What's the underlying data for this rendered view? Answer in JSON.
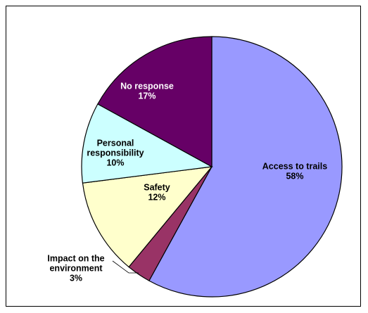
{
  "chart_data": {
    "type": "pie",
    "title": "",
    "start_angle_deg": 0,
    "direction": "clockwise",
    "slices": [
      {
        "label_lines": [
          "Access to trails",
          "58%"
        ],
        "value": 58,
        "color": "#9999ff",
        "label_color": "#000000"
      },
      {
        "label_lines": [
          "Impact on the",
          "environment",
          "3%"
        ],
        "value": 3,
        "color": "#993366",
        "label_color": "#000000"
      },
      {
        "label_lines": [
          "Safety",
          "12%"
        ],
        "value": 12,
        "color": "#ffffcc",
        "label_color": "#000000"
      },
      {
        "label_lines": [
          "Personal",
          "responsibility",
          "10%"
        ],
        "value": 10,
        "color": "#ccffff",
        "label_color": "#000000"
      },
      {
        "label_lines": [
          "No response",
          "17%"
        ],
        "value": 17,
        "color": "#660066",
        "label_color": "#ffffff"
      }
    ]
  }
}
